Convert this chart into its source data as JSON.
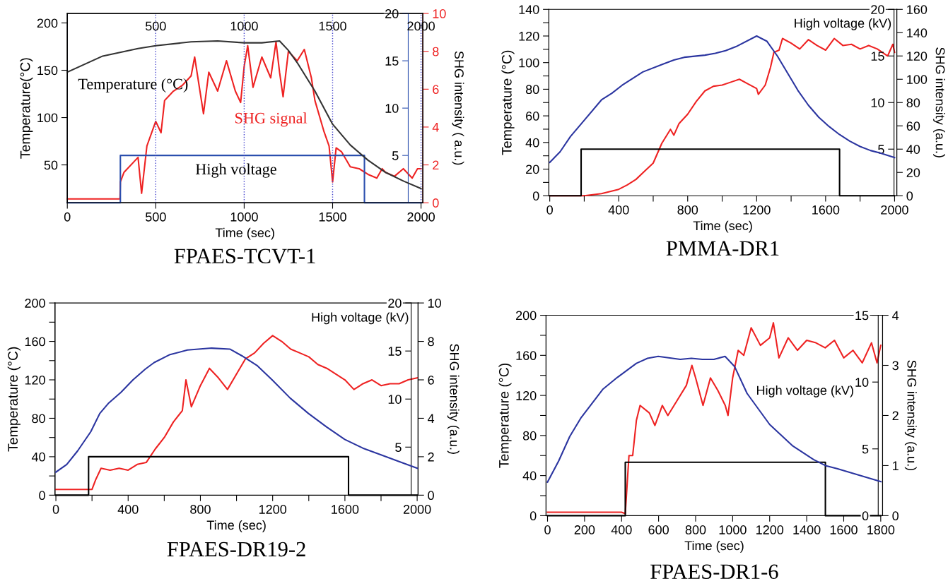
{
  "chart_data": [
    {
      "type": "line",
      "title": "FPAES-TCVT-1",
      "xlabel": "Time (sec)",
      "ylabel": "Temperature(°C)",
      "y3label": "SHG intensity ( a.u.)",
      "xlim": [
        0,
        2010
      ],
      "xticks": [
        0,
        500,
        1000,
        1500,
        2000
      ],
      "x2lim": [
        0,
        2010
      ],
      "x2ticks": [
        500,
        1000,
        1500,
        2000
      ],
      "grid": "x",
      "ylim": [
        10,
        210
      ],
      "yticks": [
        50,
        100,
        150,
        200
      ],
      "y2lim": [
        0,
        20
      ],
      "y2ticks": [
        5,
        10,
        15,
        20
      ],
      "y3lim": [
        0,
        10
      ],
      "y3ticks": [
        0,
        2,
        4,
        6,
        8,
        10
      ],
      "series": [
        {
          "name": "Temperature (°C)",
          "color": "#333333",
          "x": [
            0,
            200,
            400,
            500,
            700,
            850,
            1000,
            1100,
            1200,
            1250,
            1300,
            1400,
            1500,
            1600,
            1700,
            1800,
            1900,
            2000
          ],
          "values": [
            148,
            165,
            173,
            176,
            180,
            181,
            179,
            179,
            181,
            171,
            158,
            128,
            93,
            71,
            55,
            42,
            33,
            25
          ]
        },
        {
          "name": "SHG signal",
          "color": "#ee2222",
          "axis": "y3",
          "x": [
            0,
            100,
            200,
            298,
            300,
            320,
            400,
            420,
            450,
            500,
            530,
            550,
            600,
            650,
            700,
            720,
            750,
            770,
            800,
            850,
            900,
            950,
            980,
            1000,
            1020,
            1050,
            1100,
            1150,
            1180,
            1200,
            1220,
            1250,
            1300,
            1340,
            1380,
            1400,
            1450,
            1480,
            1500,
            1520,
            1550,
            1600,
            1650,
            1700,
            1750,
            1780,
            1800,
            1850,
            1900,
            1950,
            1980,
            2000
          ],
          "values": [
            0.2,
            0.2,
            0.2,
            0.2,
            1.1,
            1.6,
            2.4,
            0.5,
            3.0,
            4.3,
            3.7,
            5.4,
            5.9,
            6.2,
            6.7,
            7.7,
            5.9,
            4.7,
            6.9,
            5.9,
            7.5,
            5.9,
            5.3,
            7.2,
            8.3,
            6.1,
            7.7,
            6.6,
            8.5,
            6.9,
            5.6,
            8.0,
            7.5,
            8.1,
            6.6,
            5.4,
            3.8,
            3.0,
            1.1,
            2.9,
            2.7,
            1.9,
            1.8,
            1.5,
            1.3,
            1.8,
            1.6,
            1.4,
            1.8,
            1.3,
            1.8,
            1.8
          ]
        },
        {
          "name": "High voltage",
          "color": "#2b4fae",
          "axis": "y2",
          "x": [
            0,
            300,
            300,
            1680,
            1680,
            2000
          ],
          "values": [
            0,
            0,
            5,
            5,
            0,
            0
          ]
        }
      ]
    },
    {
      "type": "line",
      "title": "PMMA-DR1",
      "xlabel": "Time (sec)",
      "ylabel": "Temperature (°C)",
      "y2label": "High voltage (kV)",
      "y3label": "SHG intensity (a.u.)",
      "xlim": [
        -5,
        2013
      ],
      "xticks": [
        0,
        {
          "value": 200,
          "label": null
        },
        400,
        {
          "value": 600,
          "label": null
        },
        800,
        {
          "value": 1000,
          "label": null
        },
        1200,
        {
          "value": 1400,
          "label": null
        },
        1600,
        {
          "value": 1800,
          "label": null
        },
        2000
      ],
      "ylim": [
        0,
        140
      ],
      "yticks": [
        0,
        {
          "value": 10,
          "label": null
        },
        20,
        {
          "value": 30,
          "label": null
        },
        40,
        {
          "value": 50,
          "label": null
        },
        60,
        {
          "value": 70,
          "label": null
        },
        80,
        {
          "value": 90,
          "label": null
        },
        100,
        {
          "value": 110,
          "label": null
        },
        120,
        {
          "value": 130,
          "label": null
        },
        140
      ],
      "y2lim": [
        0,
        20
      ],
      "y2ticks": [
        5,
        10,
        15,
        20
      ],
      "y3lim": [
        0,
        160
      ],
      "y3ticks": [
        0,
        20,
        40,
        60,
        80,
        100,
        120,
        140,
        160
      ],
      "series": [
        {
          "color": "#2b35a0",
          "x": [
            0,
            60,
            120,
            200,
            300,
            360,
            420,
            540,
            660,
            720,
            780,
            900,
            960,
            1020,
            1080,
            1200,
            1260,
            1320,
            1380,
            1440,
            1500,
            1560,
            1620,
            1680,
            1740,
            1800,
            1860,
            1920,
            2000
          ],
          "values": [
            25,
            33,
            44.5,
            56.7,
            72,
            77,
            83,
            93,
            99,
            102,
            104,
            105.6,
            107,
            109,
            112,
            120,
            116,
            105,
            92,
            79,
            68,
            59,
            52,
            46,
            41,
            37,
            34,
            32,
            28.7
          ]
        },
        {
          "color": "#ee2222",
          "axis": "y3",
          "x": [
            0,
            100,
            200,
            300,
            400,
            450,
            500,
            550,
            600,
            650,
            700,
            720,
            750,
            800,
            850,
            900,
            950,
            1000,
            1050,
            1100,
            1150,
            1200,
            1210,
            1250,
            1280,
            1300,
            1330,
            1350,
            1400,
            1450,
            1500,
            1550,
            1600,
            1650,
            1700,
            1750,
            1800,
            1850,
            1900,
            1960,
            1990,
            2000
          ],
          "values": [
            0,
            0,
            0,
            1.8,
            5.5,
            9.3,
            14,
            21,
            28,
            45,
            57,
            52,
            62,
            70,
            81,
            90,
            94,
            95,
            97.5,
            100,
            96,
            92,
            87,
            95,
            110,
            123,
            125,
            135,
            131,
            126,
            134,
            129,
            125,
            135,
            129,
            130,
            126,
            129,
            126,
            120,
            130,
            123
          ]
        },
        {
          "color": "#000000",
          "axis": "y2",
          "x": [
            0,
            182,
            182,
            1681,
            1681,
            2000
          ],
          "values": [
            0,
            0,
            5,
            5,
            0,
            0
          ]
        }
      ]
    },
    {
      "type": "line",
      "title": "FPAES-DR19-2",
      "xlabel": "Time (sec)",
      "ylabel": "Temperature (°C)",
      "y2label": "High voltage (kV)",
      "y3label": "SHG intensity (a.u.)",
      "xlim": [
        -5,
        2005
      ],
      "xticks": [
        0,
        {
          "value": 200,
          "label": null
        },
        400,
        {
          "value": 600,
          "label": null
        },
        800,
        {
          "value": 1000,
          "label": null
        },
        1200,
        {
          "value": 1400,
          "label": null
        },
        1600,
        {
          "value": 1800,
          "label": null
        },
        2000
      ],
      "ylim": [
        0,
        200
      ],
      "yticks": [
        0,
        {
          "value": 20,
          "label": null
        },
        40,
        {
          "value": 60,
          "label": null
        },
        80,
        {
          "value": 100,
          "label": null
        },
        120,
        {
          "value": 140,
          "label": null
        },
        160,
        {
          "value": 180,
          "label": null
        },
        200
      ],
      "y2lim": [
        0,
        20
      ],
      "y2ticks": [
        5,
        10,
        15,
        20
      ],
      "y3lim": [
        0,
        10
      ],
      "y3ticks": [
        0,
        2,
        4,
        6,
        8,
        10
      ],
      "series": [
        {
          "color": "#2b35a0",
          "x": [
            0,
            60,
            120,
            193,
            243,
            293,
            360,
            427,
            494,
            544,
            628,
            728,
            862,
            963,
            1030,
            1113,
            1197,
            1297,
            1398,
            1498,
            1599,
            1699,
            1800,
            1900,
            2000
          ],
          "values": [
            24,
            32,
            46,
            66,
            85,
            96,
            107,
            120,
            131,
            138,
            146,
            151,
            153,
            152,
            145,
            135,
            120,
            101,
            85,
            71,
            58,
            49,
            42,
            35,
            28
          ]
        },
        {
          "color": "#ee2222",
          "axis": "y3",
          "x": [
            0,
            100,
            180,
            200,
            220,
            250,
            300,
            350,
            400,
            450,
            500,
            550,
            600,
            650,
            700,
            720,
            750,
            800,
            850,
            900,
            950,
            1000,
            1050,
            1100,
            1150,
            1200,
            1250,
            1300,
            1350,
            1400,
            1450,
            1500,
            1550,
            1600,
            1650,
            1700,
            1750,
            1800,
            1850,
            1900,
            1950,
            2000
          ],
          "values": [
            0.3,
            0.3,
            0.3,
            0.3,
            0.8,
            1.4,
            1.3,
            1.4,
            1.3,
            1.6,
            1.7,
            2.4,
            3.0,
            3.8,
            4.4,
            6.0,
            4.6,
            5.7,
            6.6,
            6.1,
            5.5,
            6.3,
            7.1,
            7.4,
            7.9,
            8.3,
            8.0,
            7.6,
            7.4,
            7.2,
            6.8,
            6.6,
            6.3,
            6.0,
            5.5,
            5.8,
            6.0,
            5.7,
            5.8,
            5.8,
            6.0,
            6.1
          ]
        },
        {
          "color": "#000000",
          "axis": "y2",
          "x": [
            0,
            181,
            181,
            1620,
            1620,
            2000
          ],
          "values": [
            0,
            0,
            4,
            4,
            0,
            0
          ]
        }
      ]
    },
    {
      "type": "line",
      "title": "FPAES-DR1-6",
      "xlabel": "Time (sec)",
      "ylabel": "Temperature (°C)",
      "y2label": "High voltage (kV)",
      "y3label": "SHG intensity (a.u.)",
      "xlim": [
        -8,
        1810
      ],
      "xticks": [
        0,
        200,
        400,
        600,
        800,
        1000,
        1200,
        1400,
        1600,
        1800
      ],
      "ylim": [
        0,
        200
      ],
      "yticks": [
        0,
        {
          "value": 20,
          "label": null
        },
        40,
        {
          "value": 60,
          "label": null
        },
        80,
        {
          "value": 100,
          "label": null
        },
        120,
        {
          "value": 140,
          "label": null
        },
        160,
        {
          "value": 180,
          "label": null
        },
        200
      ],
      "y2lim": [
        0,
        15
      ],
      "y2ticks": [
        0,
        5,
        10,
        15
      ],
      "y3lim": [
        0,
        4
      ],
      "y3ticks": [
        0,
        1,
        2,
        3,
        4
      ],
      "series": [
        {
          "color": "#2b35a0",
          "x": [
            0,
            60,
            120,
            182,
            298,
            377,
            480,
            540,
            598,
            717,
            777,
            836,
            899,
            959,
            1010,
            1078,
            1200,
            1322,
            1437,
            1501,
            1564,
            1801
          ],
          "values": [
            33.5,
            54.5,
            79,
            98,
            126,
            138,
            152,
            157,
            159,
            156,
            157,
            156,
            156,
            159,
            149,
            122,
            91,
            70,
            56,
            50,
            47,
            34
          ]
        },
        {
          "color": "#ee2222",
          "axis": "y3",
          "x": [
            0,
            100,
            200,
            300,
            400,
            420,
            440,
            460,
            480,
            500,
            550,
            580,
            620,
            650,
            700,
            750,
            780,
            800,
            840,
            880,
            920,
            960,
            975,
            1000,
            1030,
            1060,
            1100,
            1150,
            1200,
            1220,
            1250,
            1300,
            1350,
            1400,
            1450,
            1500,
            1550,
            1600,
            1650,
            1700,
            1750,
            1780,
            1800
          ],
          "values": [
            0.07,
            0.07,
            0.07,
            0.07,
            0.07,
            0.04,
            1.2,
            1.2,
            1.9,
            2.2,
            2.05,
            1.8,
            2.2,
            2.0,
            2.3,
            2.6,
            3.0,
            2.75,
            2.2,
            2.75,
            2.5,
            2.2,
            2.0,
            2.75,
            3.3,
            3.2,
            3.75,
            3.4,
            3.55,
            3.85,
            3.15,
            3.55,
            3.3,
            3.5,
            3.45,
            3.35,
            3.5,
            3.15,
            3.3,
            3.05,
            3.45,
            3.05,
            3.4
          ]
        },
        {
          "color": "#000000",
          "axis": "y2",
          "x": [
            0,
            420,
            420,
            1501,
            1501,
            1800
          ],
          "values": [
            0,
            0,
            4,
            4,
            0,
            0
          ]
        }
      ]
    }
  ]
}
